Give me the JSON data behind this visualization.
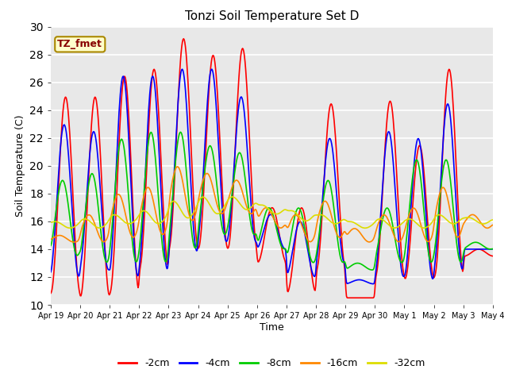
{
  "title": "Tonzi Soil Temperature Set D",
  "xlabel": "Time",
  "ylabel": "Soil Temperature (C)",
  "ylim": [
    10,
    30
  ],
  "series_colors": {
    "-2cm": "#ff0000",
    "-4cm": "#0000ff",
    "-8cm": "#00cc00",
    "-16cm": "#ff8800",
    "-32cm": "#dddd00"
  },
  "series_labels": [
    "-2cm",
    "-4cm",
    "-8cm",
    "-16cm",
    "-32cm"
  ],
  "xtick_labels": [
    "Apr 19",
    "Apr 20",
    "Apr 21",
    "Apr 22",
    "Apr 23",
    "Apr 24",
    "Apr 25",
    "Apr 26",
    "Apr 27",
    "Apr 28",
    "Apr 29",
    "Apr 30",
    "May 1",
    "May 2",
    "May 3",
    "May 4"
  ],
  "annotation_text": "TZ_fmet",
  "annotation_color": "#880000",
  "annotation_bg": "#ffffcc",
  "annotation_border": "#aa8800",
  "background_color": "#e8e8e8",
  "grid_color": "#ffffff",
  "yticks": [
    10,
    12,
    14,
    16,
    18,
    20,
    22,
    24,
    26,
    28,
    30
  ],
  "n_days": 15,
  "pts_per_day": 48
}
